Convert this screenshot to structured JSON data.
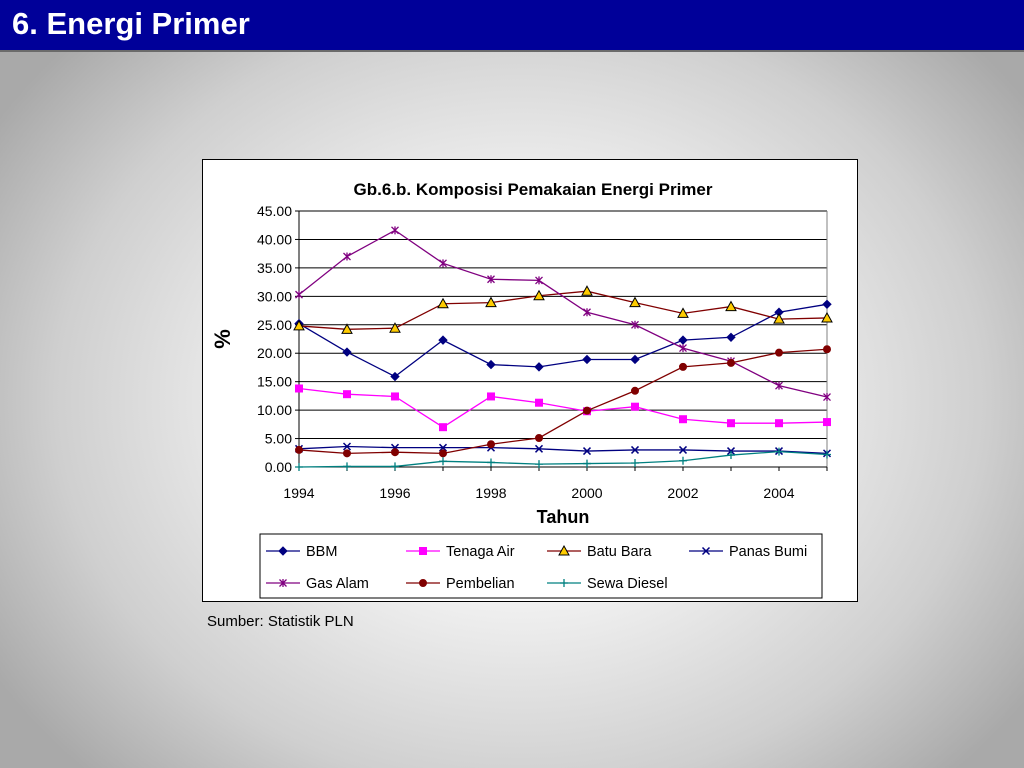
{
  "slide": {
    "title": "6. Energi Primer",
    "source": "Sumber: Statistik PLN"
  },
  "chart_data": {
    "type": "line",
    "title": "Gb.6.b. Komposisi Pemakaian Energi Primer",
    "xlabel": "Tahun",
    "ylabel": "%",
    "xlim": [
      1994,
      2005
    ],
    "ylim": [
      0,
      45
    ],
    "xticks": [
      "1994",
      "1996",
      "1998",
      "2000",
      "2002",
      "2004"
    ],
    "yticks": [
      "0.00",
      "5.00",
      "10.00",
      "15.00",
      "20.00",
      "25.00",
      "30.00",
      "35.00",
      "40.00",
      "45.00"
    ],
    "grid": "horizontal",
    "legend_position": "bottom",
    "x": [
      1994,
      1995,
      1996,
      1997,
      1998,
      1999,
      2000,
      2001,
      2002,
      2003,
      2004,
      2005
    ],
    "series": [
      {
        "name": "BBM",
        "color": "#000080",
        "marker": "diamond",
        "values": [
          25.2,
          20.2,
          15.9,
          22.3,
          18.0,
          17.6,
          18.9,
          18.9,
          22.3,
          22.8,
          27.2,
          28.6
        ]
      },
      {
        "name": "Tenaga Air",
        "color": "#ff00ff",
        "marker": "square",
        "values": [
          13.8,
          12.8,
          12.4,
          7.0,
          12.4,
          11.3,
          9.8,
          10.6,
          8.4,
          7.7,
          7.7,
          7.9
        ]
      },
      {
        "name": "Batu Bara",
        "color": "#800000",
        "marker": "triangle",
        "values": [
          24.8,
          24.2,
          24.4,
          28.7,
          28.9,
          30.1,
          30.9,
          28.9,
          27.0,
          28.2,
          26.0,
          26.2
        ]
      },
      {
        "name": "Panas Bumi",
        "color": "#000080",
        "marker": "x",
        "values": [
          3.2,
          3.6,
          3.4,
          3.4,
          3.4,
          3.2,
          2.8,
          3.0,
          3.0,
          2.8,
          2.8,
          2.4
        ]
      },
      {
        "name": "Gas Alam",
        "color": "#800080",
        "marker": "star",
        "values": [
          30.3,
          37.0,
          41.6,
          35.8,
          33.0,
          32.8,
          27.2,
          25.0,
          20.9,
          18.6,
          14.3,
          12.3
        ]
      },
      {
        "name": "Pembelian",
        "color": "#800000",
        "marker": "circle",
        "values": [
          3.0,
          2.4,
          2.6,
          2.4,
          4.0,
          5.1,
          9.9,
          13.4,
          17.6,
          18.3,
          20.1,
          20.7
        ]
      },
      {
        "name": "Sewa Diesel",
        "color": "#008080",
        "marker": "plus",
        "values": [
          0.0,
          0.1,
          0.1,
          1.0,
          0.8,
          0.5,
          0.6,
          0.7,
          1.1,
          2.1,
          2.7,
          2.2
        ]
      }
    ]
  }
}
